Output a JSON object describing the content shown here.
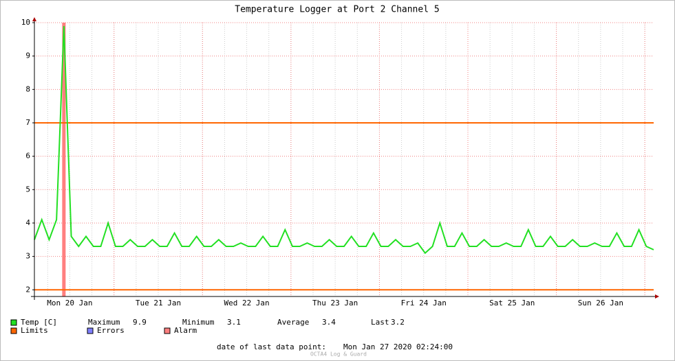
{
  "chart_data": {
    "type": "line",
    "title": "Temperature Logger at Port 2 Channel 5",
    "xlim": [
      0,
      84
    ],
    "xticks": [
      {
        "value": 4.8,
        "label": "Mon 20 Jan"
      },
      {
        "value": 16.8,
        "label": "Tue 21 Jan"
      },
      {
        "value": 28.8,
        "label": "Wed 22 Jan"
      },
      {
        "value": 40.8,
        "label": "Thu 23 Jan"
      },
      {
        "value": 52.8,
        "label": "Fri 24 Jan"
      },
      {
        "value": 64.8,
        "label": "Sat 25 Jan"
      },
      {
        "value": 76.8,
        "label": "Sun 26 Jan"
      }
    ],
    "xgrid": [
      10.8,
      22.8,
      34.8,
      46.8,
      58.8,
      70.8,
      82.8
    ],
    "ylim": [
      1.8,
      10
    ],
    "yticks": [
      2,
      3,
      4,
      5,
      6,
      7,
      8,
      9,
      10
    ],
    "grid": true,
    "series": [
      {
        "name": "Temp [C]",
        "color": "#22e022",
        "values": [
          3.5,
          4.1,
          3.5,
          4.1,
          9.9,
          3.6,
          3.3,
          3.6,
          3.3,
          3.3,
          4.0,
          3.3,
          3.3,
          3.5,
          3.3,
          3.3,
          3.5,
          3.3,
          3.3,
          3.7,
          3.3,
          3.3,
          3.6,
          3.3,
          3.3,
          3.5,
          3.3,
          3.3,
          3.4,
          3.3,
          3.3,
          3.6,
          3.3,
          3.3,
          3.8,
          3.3,
          3.3,
          3.4,
          3.3,
          3.3,
          3.5,
          3.3,
          3.3,
          3.6,
          3.3,
          3.3,
          3.7,
          3.3,
          3.3,
          3.5,
          3.3,
          3.3,
          3.4,
          3.1,
          3.3,
          4.0,
          3.3,
          3.3,
          3.7,
          3.3,
          3.3,
          3.5,
          3.3,
          3.3,
          3.4,
          3.3,
          3.3,
          3.8,
          3.3,
          3.3,
          3.6,
          3.3,
          3.3,
          3.5,
          3.3,
          3.3,
          3.4,
          3.3,
          3.3,
          3.7,
          3.3,
          3.3,
          3.8,
          3.3,
          3.2
        ]
      },
      {
        "name": "Limits",
        "color": "#ff6600",
        "values": [
          7,
          2
        ]
      },
      {
        "name": "Errors",
        "color": "#7f7fff",
        "values": []
      },
      {
        "name": "Alarm",
        "color": "#ff7f7f",
        "x": [
          4
        ]
      }
    ],
    "stats": [
      {
        "label": "Maximum",
        "value": 9.9
      },
      {
        "label": "Minimum",
        "value": 3.1
      },
      {
        "label": "Average",
        "value": 3.4
      },
      {
        "label": "Last",
        "value": 3.2
      }
    ],
    "footer_label": "date of last data point:",
    "footer_value": "Mon Jan 27 2020 02:24:00",
    "watermark": "OCTA4 Log & Guard"
  }
}
